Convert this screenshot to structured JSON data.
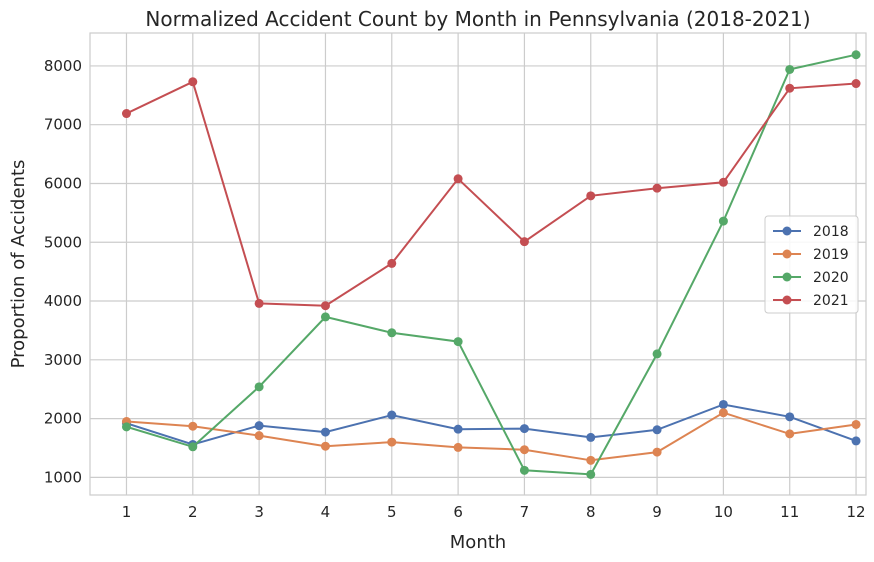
{
  "chart_data": {
    "type": "line",
    "title": "Normalized Accident Count by Month in Pennsylvania (2018-2021)",
    "xlabel": "Month",
    "ylabel": "Proportion of Accidents",
    "x": [
      1,
      2,
      3,
      4,
      5,
      6,
      7,
      8,
      9,
      10,
      11,
      12
    ],
    "xlim": [
      0.45,
      12.15
    ],
    "ylim": [
      700,
      8560
    ],
    "yticks": [
      1000,
      2000,
      3000,
      4000,
      5000,
      6000,
      7000,
      8000
    ],
    "grid": true,
    "legend_position": "center-right",
    "series": [
      {
        "name": "2018",
        "color": "#4c72b0",
        "values": [
          1920,
          1560,
          1880,
          1770,
          2060,
          1820,
          1830,
          1680,
          1810,
          2240,
          2030,
          1620
        ]
      },
      {
        "name": "2019",
        "color": "#dd8452",
        "values": [
          1950,
          1870,
          1710,
          1530,
          1600,
          1510,
          1470,
          1290,
          1430,
          2100,
          1740,
          1900
        ]
      },
      {
        "name": "2020",
        "color": "#55a868",
        "values": [
          1860,
          1520,
          2540,
          3730,
          3460,
          3310,
          1120,
          1050,
          3100,
          5360,
          7940,
          8190
        ]
      },
      {
        "name": "2021",
        "color": "#c44e52",
        "values": [
          7190,
          7730,
          3960,
          3920,
          4640,
          6080,
          5010,
          5790,
          5920,
          6020,
          7620,
          7700
        ]
      }
    ]
  }
}
